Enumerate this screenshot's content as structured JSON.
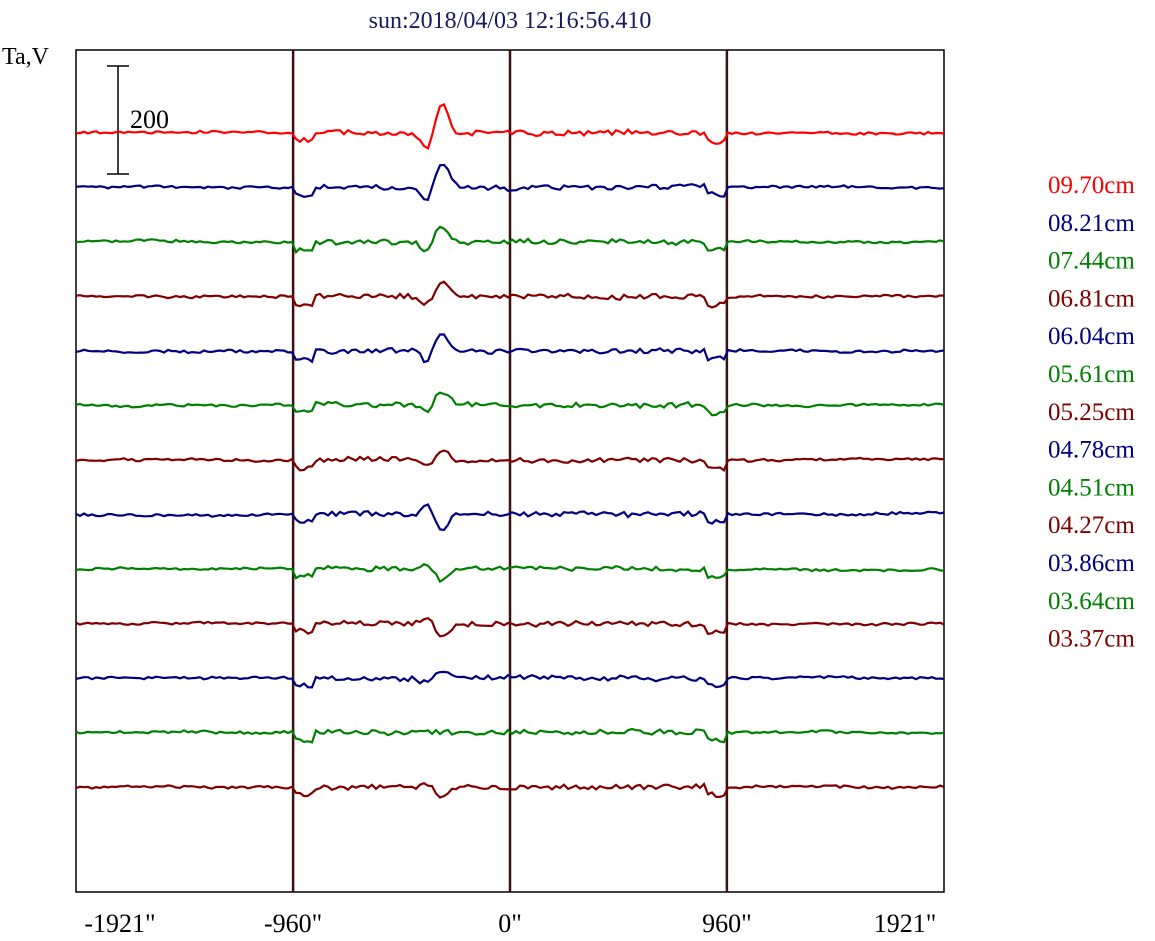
{
  "chart_data": {
    "type": "line",
    "title": "sun:2018/04/03 12:16:56.410",
    "ylabel": "Ta,V",
    "scale_bar": {
      "label": "200",
      "value": 200
    },
    "x_ticks": [
      {
        "label": "-1921\"",
        "value": -1921
      },
      {
        "label": "-960\"",
        "value": -960
      },
      {
        "label": "0\"",
        "value": 0
      },
      {
        "label": "960\"",
        "value": 960
      },
      {
        "label": "1921\"",
        "value": 1921
      }
    ],
    "xlim": [
      -1921,
      1921
    ],
    "vertical_markers": [
      -960,
      0,
      960
    ],
    "series": [
      {
        "name": "09.70cm",
        "color": "#ff0000",
        "bump": 28
      },
      {
        "name": "08.21cm",
        "color": "#000080",
        "bump": 24
      },
      {
        "name": "07.44cm",
        "color": "#008000",
        "bump": 16
      },
      {
        "name": "06.81cm",
        "color": "#800000",
        "bump": 14
      },
      {
        "name": "06.04cm",
        "color": "#000080",
        "bump": 18
      },
      {
        "name": "05.61cm",
        "color": "#008000",
        "bump": 14
      },
      {
        "name": "05.25cm",
        "color": "#800000",
        "bump": 10
      },
      {
        "name": "04.78cm",
        "color": "#000080",
        "bump": -16
      },
      {
        "name": "04.51cm",
        "color": "#008000",
        "bump": -12
      },
      {
        "name": "04.27cm",
        "color": "#800000",
        "bump": -12
      },
      {
        "name": "03.86cm",
        "color": "#000080",
        "bump": 8
      },
      {
        "name": "03.64cm",
        "color": "#008000",
        "bump": 0
      },
      {
        "name": "03.37cm",
        "color": "#800000",
        "bump": -8
      }
    ]
  }
}
